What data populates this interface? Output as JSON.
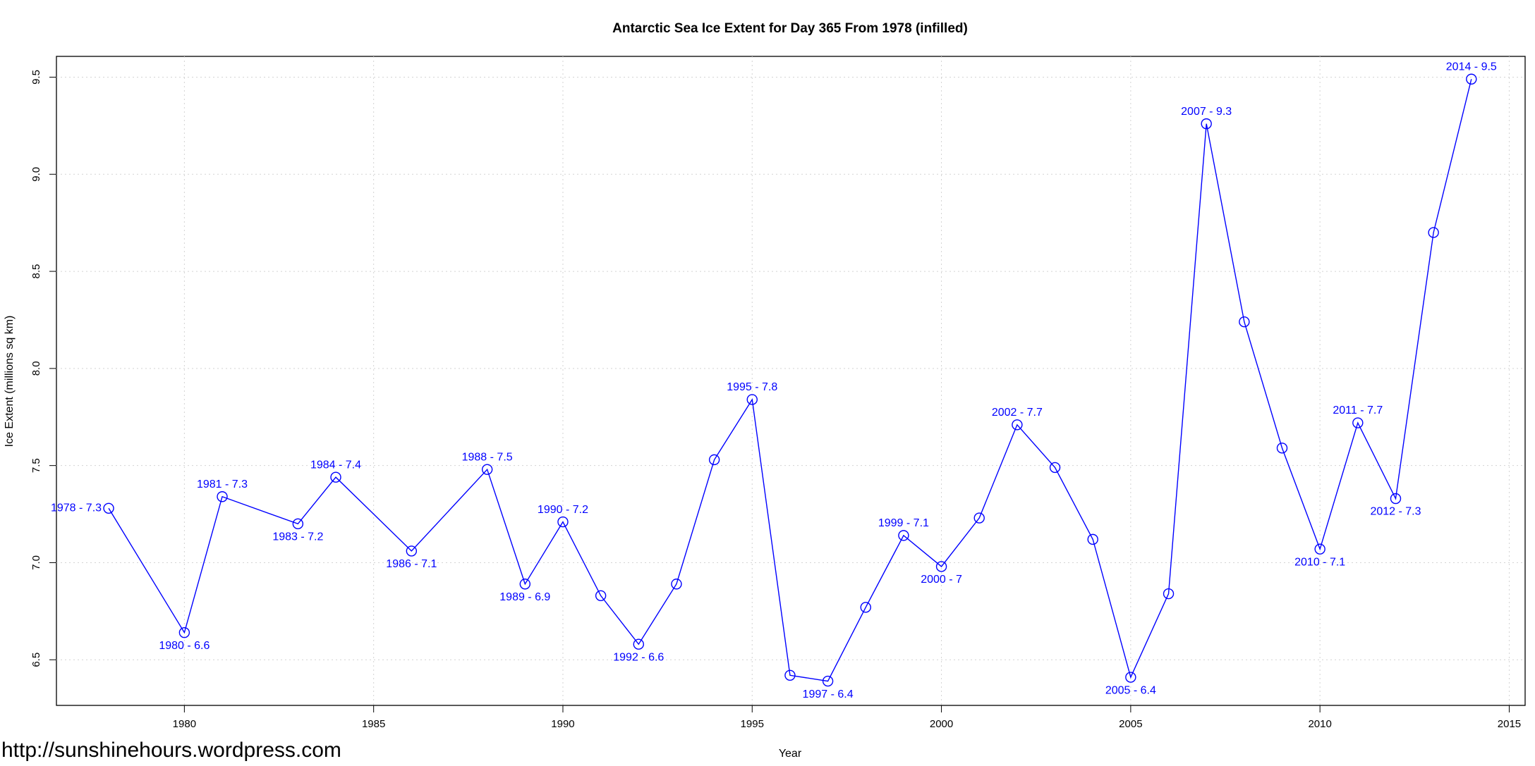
{
  "chart_data": {
    "type": "line",
    "title": "Antarctic Sea Ice Extent for Day 365 From 1978 (infilled)",
    "x_label": "Year",
    "y_label": "Ice Extent (millions sq km)",
    "watermark": "http://sunshinehours.wordpress.com",
    "x": [
      1978,
      1980,
      1981,
      1983,
      1984,
      1986,
      1988,
      1989,
      1990,
      1991,
      1992,
      1993,
      1994,
      1995,
      1996,
      1997,
      1998,
      1999,
      2000,
      2001,
      2002,
      2003,
      2004,
      2005,
      2006,
      2007,
      2008,
      2009,
      2010,
      2011,
      2012,
      2013,
      2014
    ],
    "series": [
      {
        "color": "#0000ff",
        "values": [
          7.28,
          6.64,
          7.34,
          7.2,
          7.44,
          7.06,
          7.48,
          6.89,
          7.21,
          6.83,
          6.58,
          6.89,
          7.53,
          7.84,
          6.42,
          6.39,
          6.77,
          7.14,
          6.98,
          7.23,
          7.71,
          7.49,
          7.12,
          6.41,
          6.84,
          9.26,
          8.24,
          7.59,
          7.07,
          7.72,
          7.33,
          8.7,
          9.49
        ],
        "value_labels": [
          "1978 - 7.3",
          "1980 - 6.6",
          "1981 - 7.3",
          "1983 - 7.2",
          "1984 - 7.4",
          "1986 - 7.1",
          "1988 - 7.5",
          "1989 - 6.9",
          "1990 - 7.2",
          null,
          "1992 - 6.6",
          null,
          null,
          "1995 - 7.8",
          null,
          "1997 - 6.4",
          null,
          "1999 - 7.1",
          "2000 - 7",
          null,
          "2002 - 7.7",
          null,
          null,
          "2005 - 6.4",
          null,
          "2007 - 9.3",
          null,
          null,
          "2010 - 7.1",
          "2011 - 7.7",
          "2012 - 7.3",
          null,
          "2014 - 9.5"
        ]
      }
    ],
    "xlim": [
      1976.62,
      2015.42
    ],
    "ylim": [
      6.265,
      9.607
    ],
    "xticks": [
      1980,
      1985,
      1990,
      1995,
      2000,
      2005,
      2010,
      2015
    ],
    "yticks": [
      {
        "value": 6.5,
        "label": "6.5"
      },
      {
        "value": 7,
        "label": "7.0"
      },
      {
        "value": 7.5,
        "label": "7.5"
      },
      {
        "value": 8,
        "label": "8.0"
      },
      {
        "value": 8.5,
        "label": "8.5"
      },
      {
        "value": 9,
        "label": "9.0"
      },
      {
        "value": 9.5,
        "label": "9.5"
      }
    ],
    "grid": true
  }
}
